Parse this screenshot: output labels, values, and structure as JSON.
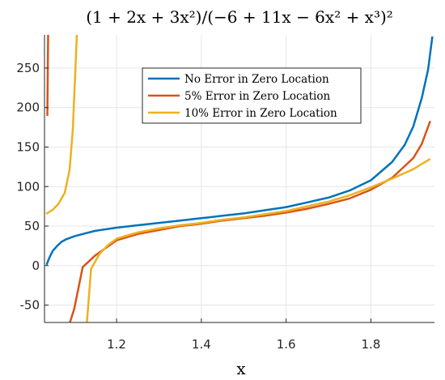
{
  "chart_data": {
    "type": "line",
    "title": "(1 + 2x + 3x²)/(−6 + 11x − 6x² + x³)²",
    "xlabel": "x",
    "ylabel": "",
    "xlim": [
      1.03,
      1.95
    ],
    "ylim": [
      -72,
      292
    ],
    "x_ticks": [
      1.2,
      1.4,
      1.6,
      1.8
    ],
    "x_tick_labels": [
      "1.2",
      "1.4",
      "1.6",
      "1.8"
    ],
    "y_ticks": [
      -50,
      0,
      50,
      100,
      150,
      200,
      250
    ],
    "y_tick_labels": [
      "-50",
      "0",
      "50",
      "100",
      "150",
      "200",
      "250"
    ],
    "grid": true,
    "legend_position": "top-center",
    "series": [
      {
        "name": "No Error in Zero Location",
        "color": "#0072BD",
        "x": [
          1.035,
          1.04,
          1.045,
          1.05,
          1.06,
          1.07,
          1.08,
          1.1,
          1.12,
          1.15,
          1.2,
          1.25,
          1.3,
          1.35,
          1.4,
          1.45,
          1.5,
          1.55,
          1.6,
          1.65,
          1.7,
          1.75,
          1.8,
          1.85,
          1.88,
          1.9,
          1.92,
          1.935,
          1.945
        ],
        "y": [
          1,
          8,
          14,
          19,
          25,
          30,
          33,
          37,
          40,
          44,
          48,
          51,
          54,
          57,
          60,
          63,
          66,
          70,
          74,
          80,
          86,
          95,
          108,
          131,
          153,
          176,
          212,
          248,
          290
        ]
      },
      {
        "name": "5% Error in Zero Location",
        "color": "#D95319",
        "x": [
          1.09,
          1.1,
          1.12,
          1.15,
          1.2,
          1.25,
          1.3,
          1.35,
          1.4,
          1.45,
          1.5,
          1.55,
          1.6,
          1.65,
          1.7,
          1.75,
          1.8,
          1.85,
          1.9,
          1.92,
          1.94
        ],
        "y": [
          -72,
          -55,
          -2,
          13,
          32,
          40,
          45,
          50,
          53,
          57,
          60,
          63,
          67,
          72,
          78,
          85,
          96,
          111,
          136,
          154,
          183
        ]
      },
      {
        "name": "10% Error in Zero Location",
        "color": "#EDB120",
        "x": [
          1.13,
          1.14,
          1.16,
          1.18,
          1.2,
          1.25,
          1.3,
          1.35,
          1.4,
          1.45,
          1.5,
          1.55,
          1.6,
          1.65,
          1.7,
          1.75,
          1.8,
          1.85,
          1.9,
          1.94
        ],
        "y": [
          -72,
          -4,
          15,
          26,
          34,
          42,
          47,
          51,
          54,
          58,
          61,
          65,
          69,
          75,
          81,
          89,
          99,
          110,
          122,
          135
        ]
      }
    ]
  }
}
